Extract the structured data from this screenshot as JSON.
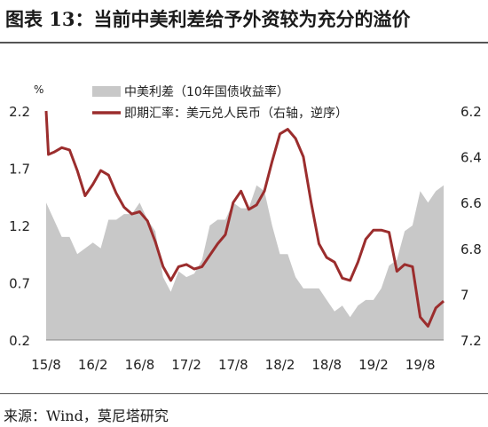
{
  "title": "图表 13：当前中美利差给予外资较为充分的溢价",
  "source": "来源：Wind，莫尼塔研究",
  "chart_data": {
    "type": "area+line",
    "left_unit": "%",
    "left_axis": {
      "min": 0.2,
      "max": 2.2,
      "ticks": [
        "0.2",
        "0.7",
        "1.2",
        "1.7",
        "2.2"
      ]
    },
    "right_axis": {
      "min": 6.2,
      "max": 7.2,
      "inverted": true,
      "ticks": [
        "6.2",
        "6.4",
        "6.6",
        "6.8",
        "7",
        "7.2"
      ]
    },
    "x_axis": {
      "start": "2015-08",
      "end": "2019-11",
      "ticks": [
        "15/8",
        "16/2",
        "16/8",
        "17/2",
        "17/8",
        "18/2",
        "18/8",
        "19/2",
        "19/8"
      ]
    },
    "legend": [
      {
        "name": "中美利差（10年国债收益率）",
        "color": "#c8c8c8"
      },
      {
        "name": "即期汇率：美元兑人民币（右轴，逆序）",
        "color": "#9b2d2d"
      }
    ],
    "series": [
      {
        "name": "中美利差（10年国债收益率）",
        "axis": "left",
        "color": "#c8c8c8",
        "points": [
          [
            "2015-08",
            1.4
          ],
          [
            "2015-09",
            1.25
          ],
          [
            "2015-10",
            1.1
          ],
          [
            "2015-11",
            1.1
          ],
          [
            "2015-12",
            0.95
          ],
          [
            "2016-01",
            1.0
          ],
          [
            "2016-02",
            1.05
          ],
          [
            "2016-03",
            1.0
          ],
          [
            "2016-04",
            1.25
          ],
          [
            "2016-05",
            1.25
          ],
          [
            "2016-06",
            1.3
          ],
          [
            "2016-07",
            1.3
          ],
          [
            "2016-08",
            1.4
          ],
          [
            "2016-09",
            1.25
          ],
          [
            "2016-10",
            1.15
          ],
          [
            "2016-11",
            0.75
          ],
          [
            "2016-12",
            0.62
          ],
          [
            "2017-01",
            0.8
          ],
          [
            "2017-02",
            0.75
          ],
          [
            "2017-03",
            0.78
          ],
          [
            "2017-04",
            0.9
          ],
          [
            "2017-05",
            1.2
          ],
          [
            "2017-06",
            1.25
          ],
          [
            "2017-07",
            1.25
          ],
          [
            "2017-08",
            1.4
          ],
          [
            "2017-09",
            1.35
          ],
          [
            "2017-10",
            1.35
          ],
          [
            "2017-11",
            1.55
          ],
          [
            "2017-12",
            1.5
          ],
          [
            "2018-01",
            1.2
          ],
          [
            "2018-02",
            0.95
          ],
          [
            "2018-03",
            0.95
          ],
          [
            "2018-04",
            0.75
          ],
          [
            "2018-05",
            0.65
          ],
          [
            "2018-06",
            0.65
          ],
          [
            "2018-07",
            0.65
          ],
          [
            "2018-08",
            0.55
          ],
          [
            "2018-09",
            0.45
          ],
          [
            "2018-10",
            0.5
          ],
          [
            "2018-11",
            0.4
          ],
          [
            "2018-12",
            0.5
          ],
          [
            "2019-01",
            0.55
          ],
          [
            "2019-02",
            0.55
          ],
          [
            "2019-03",
            0.65
          ],
          [
            "2019-04",
            0.85
          ],
          [
            "2019-05",
            0.9
          ],
          [
            "2019-06",
            1.15
          ],
          [
            "2019-07",
            1.2
          ],
          [
            "2019-08",
            1.5
          ],
          [
            "2019-09",
            1.4
          ],
          [
            "2019-10",
            1.5
          ],
          [
            "2019-11",
            1.55
          ]
        ]
      },
      {
        "name": "即期汇率：美元兑人民币（右轴，逆序）",
        "axis": "right",
        "color": "#9b2d2d",
        "points": [
          [
            "2015-08",
            6.2
          ],
          [
            "2015-08-10",
            6.39
          ],
          [
            "2015-09",
            6.38
          ],
          [
            "2015-10",
            6.36
          ],
          [
            "2015-11",
            6.37
          ],
          [
            "2015-12",
            6.46
          ],
          [
            "2016-01",
            6.57
          ],
          [
            "2016-02",
            6.52
          ],
          [
            "2016-03",
            6.46
          ],
          [
            "2016-04",
            6.48
          ],
          [
            "2016-05",
            6.56
          ],
          [
            "2016-06",
            6.62
          ],
          [
            "2016-07",
            6.65
          ],
          [
            "2016-08",
            6.64
          ],
          [
            "2016-09",
            6.68
          ],
          [
            "2016-10",
            6.77
          ],
          [
            "2016-11",
            6.88
          ],
          [
            "2016-12",
            6.94
          ],
          [
            "2017-01",
            6.88
          ],
          [
            "2017-02",
            6.87
          ],
          [
            "2017-03",
            6.89
          ],
          [
            "2017-04",
            6.88
          ],
          [
            "2017-05",
            6.83
          ],
          [
            "2017-06",
            6.78
          ],
          [
            "2017-07",
            6.74
          ],
          [
            "2017-08",
            6.6
          ],
          [
            "2017-09",
            6.55
          ],
          [
            "2017-10",
            6.63
          ],
          [
            "2017-11",
            6.61
          ],
          [
            "2017-12",
            6.55
          ],
          [
            "2018-01",
            6.42
          ],
          [
            "2018-02",
            6.3
          ],
          [
            "2018-03",
            6.28
          ],
          [
            "2018-04",
            6.32
          ],
          [
            "2018-05",
            6.4
          ],
          [
            "2018-06",
            6.6
          ],
          [
            "2018-07",
            6.78
          ],
          [
            "2018-08",
            6.84
          ],
          [
            "2018-09",
            6.86
          ],
          [
            "2018-10",
            6.93
          ],
          [
            "2018-11",
            6.94
          ],
          [
            "2018-12",
            6.86
          ],
          [
            "2019-01",
            6.76
          ],
          [
            "2019-02",
            6.72
          ],
          [
            "2019-03",
            6.72
          ],
          [
            "2019-04",
            6.73
          ],
          [
            "2019-05",
            6.9
          ],
          [
            "2019-06",
            6.87
          ],
          [
            "2019-07",
            6.88
          ],
          [
            "2019-08",
            7.1
          ],
          [
            "2019-09",
            7.14
          ],
          [
            "2019-10",
            7.06
          ],
          [
            "2019-11",
            7.03
          ]
        ]
      }
    ]
  }
}
